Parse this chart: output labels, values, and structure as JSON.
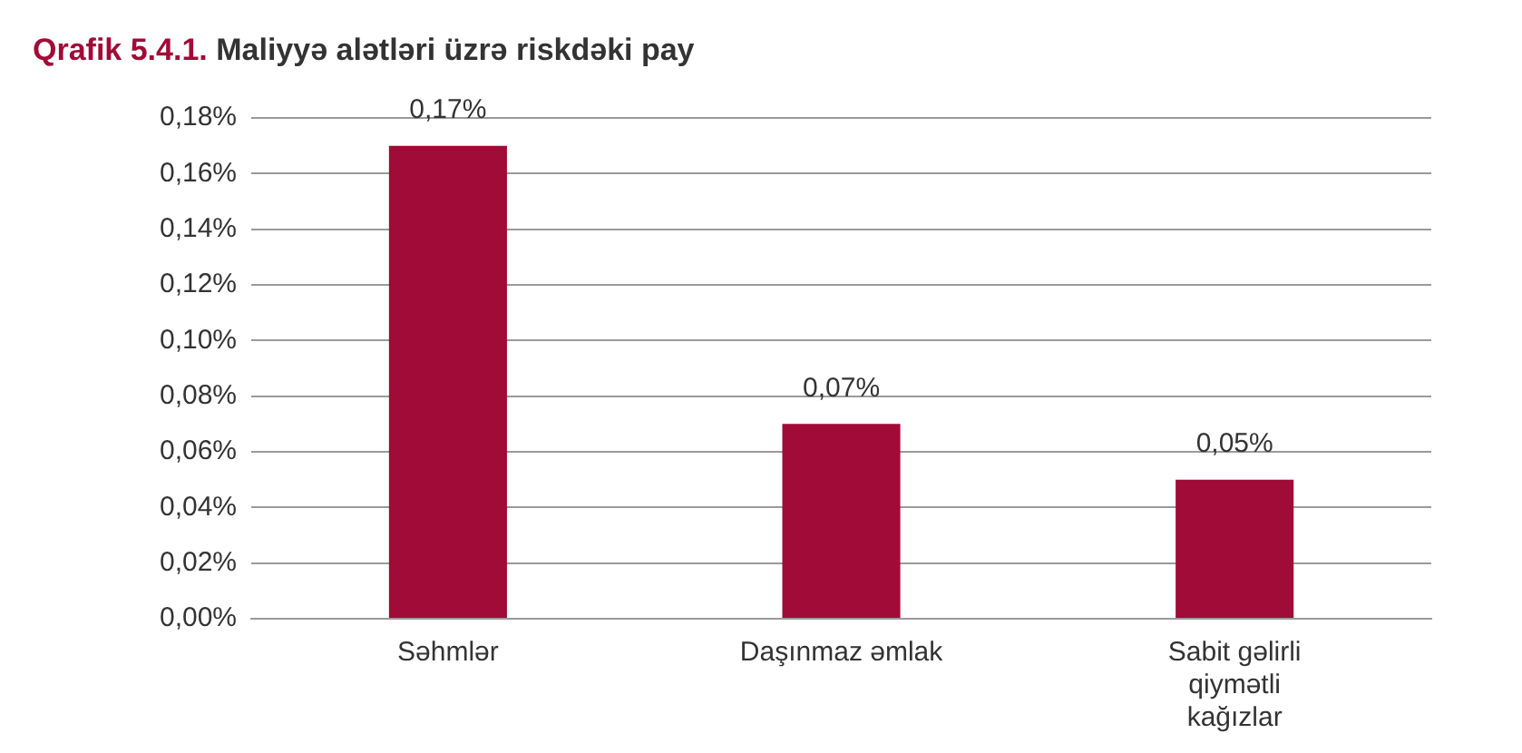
{
  "chart_data": {
    "type": "bar",
    "title": "Qrafik 5.4.1. Maliyyə alətləri üzrə riskdəki pay",
    "categories": [
      "Səhmlər",
      "Daşınmaz əmlak",
      "Sabit gəlirli qiymətli kağızlar"
    ],
    "values": [
      0.17,
      0.07,
      0.05
    ],
    "color": "#a10b37",
    "value_labels": [
      "0,17%",
      "0,07%",
      "0,05%"
    ],
    "ylim": [
      0,
      0.18
    ],
    "yticks": [
      {
        "value": 0,
        "label": "0,00%"
      },
      {
        "value": 0.02,
        "label": "0,02%"
      },
      {
        "value": 0.04,
        "label": "0,04%"
      },
      {
        "value": 0.06,
        "label": "0,06%"
      },
      {
        "value": 0.08,
        "label": "0,08%"
      },
      {
        "value": 0.1,
        "label": "0,10%"
      },
      {
        "value": 0.12,
        "label": "0,12%"
      },
      {
        "value": 0.14,
        "label": "0,14%"
      },
      {
        "value": 0.16,
        "label": "0,16%"
      },
      {
        "value": 0.18,
        "label": "0,18%"
      }
    ],
    "grid": "y"
  }
}
